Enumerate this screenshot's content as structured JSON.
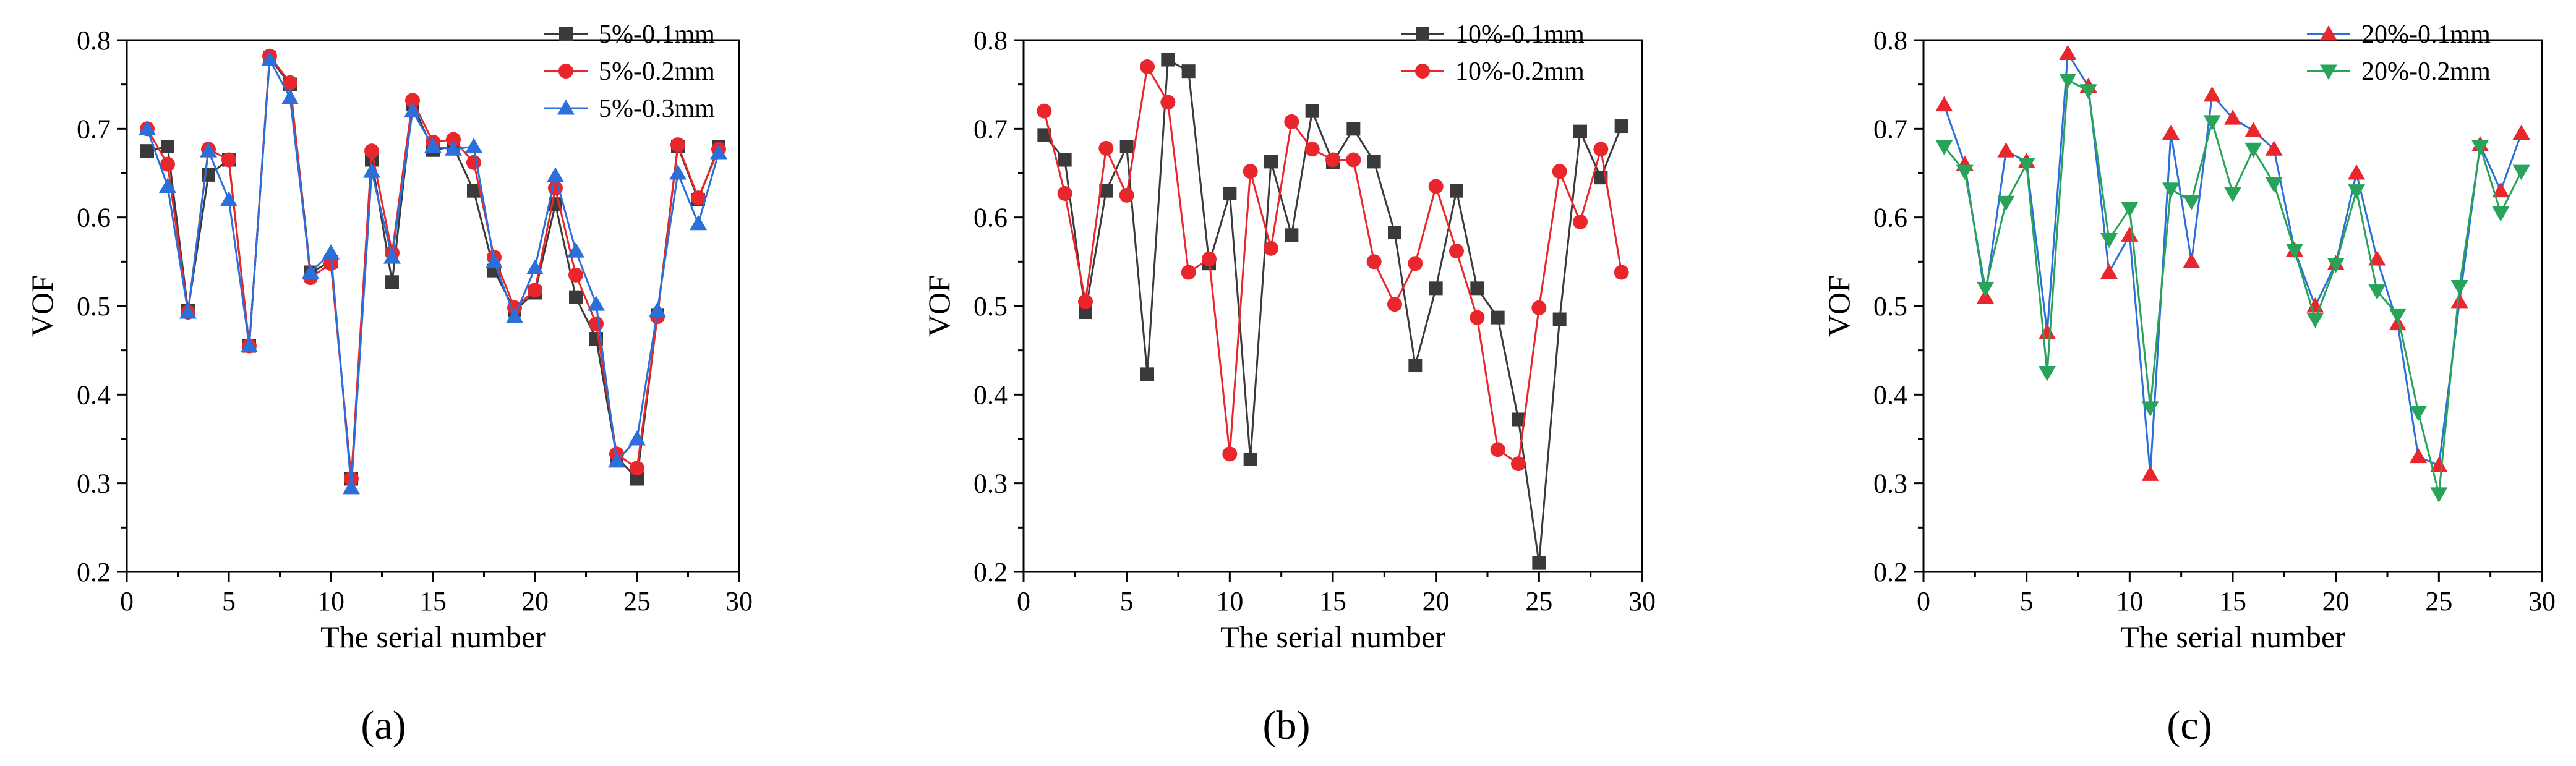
{
  "chart_data": [
    {
      "type": "line",
      "panel_label": "(a)",
      "xlabel": "The serial number",
      "ylabel": "VOF",
      "xlim": [
        0,
        30
      ],
      "ylim": [
        0.2,
        0.8
      ],
      "xticks": [
        "0",
        "5",
        "10",
        "15",
        "20",
        "25",
        "30"
      ],
      "yticks": [
        "0.2",
        "0.3",
        "0.4",
        "0.5",
        "0.6",
        "0.7",
        "0.8"
      ],
      "legend_position": "top-right",
      "series": [
        {
          "name": "5%-0.1mm",
          "color": "#3a3a3a",
          "marker": "square",
          "x": [
            1,
            2,
            3,
            4,
            5,
            6,
            7,
            8,
            9,
            10,
            11,
            12,
            13,
            14,
            15,
            16,
            17,
            18,
            19,
            20,
            21,
            22,
            23,
            24,
            25,
            26,
            27,
            28,
            29
          ],
          "values": [
            0.675,
            0.68,
            0.495,
            0.648,
            0.665,
            0.455,
            0.78,
            0.75,
            0.538,
            0.55,
            0.305,
            0.665,
            0.527,
            0.728,
            0.676,
            0.68,
            0.63,
            0.54,
            0.495,
            0.515,
            0.615,
            0.51,
            0.463,
            0.33,
            0.305,
            0.49,
            0.68,
            0.62,
            0.68
          ]
        },
        {
          "name": "5%-0.2mm",
          "color": "#e8262b",
          "marker": "circle",
          "x": [
            1,
            2,
            3,
            4,
            5,
            6,
            7,
            8,
            9,
            10,
            11,
            12,
            13,
            14,
            15,
            16,
            17,
            18,
            19,
            20,
            21,
            22,
            23,
            24,
            25,
            26,
            27,
            28,
            29
          ],
          "values": [
            0.7,
            0.66,
            0.493,
            0.677,
            0.665,
            0.455,
            0.782,
            0.752,
            0.532,
            0.548,
            0.305,
            0.675,
            0.56,
            0.732,
            0.685,
            0.688,
            0.662,
            0.555,
            0.498,
            0.518,
            0.633,
            0.535,
            0.48,
            0.333,
            0.317,
            0.488,
            0.682,
            0.622,
            0.677
          ]
        },
        {
          "name": "5%-0.3mm",
          "color": "#2b6fdb",
          "marker": "triangle-up",
          "x": [
            1,
            2,
            3,
            4,
            5,
            6,
            7,
            8,
            9,
            10,
            11,
            12,
            13,
            14,
            15,
            16,
            17,
            18,
            19,
            20,
            21,
            22,
            23,
            24,
            25,
            26,
            27,
            28,
            29
          ],
          "values": [
            0.7,
            0.635,
            0.493,
            0.675,
            0.62,
            0.455,
            0.778,
            0.735,
            0.538,
            0.56,
            0.295,
            0.652,
            0.555,
            0.72,
            0.68,
            0.677,
            0.68,
            0.55,
            0.488,
            0.543,
            0.647,
            0.562,
            0.502,
            0.325,
            0.35,
            0.495,
            0.65,
            0.593,
            0.673
          ]
        }
      ]
    },
    {
      "type": "line",
      "panel_label": "(b)",
      "xlabel": "The serial number",
      "ylabel": "VOF",
      "xlim": [
        0,
        30
      ],
      "ylim": [
        0.2,
        0.8
      ],
      "xticks": [
        "0",
        "5",
        "10",
        "15",
        "20",
        "25",
        "30"
      ],
      "yticks": [
        "0.2",
        "0.3",
        "0.4",
        "0.5",
        "0.6",
        "0.7",
        "0.8"
      ],
      "legend_position": "top-right",
      "series": [
        {
          "name": "10%-0.1mm",
          "color": "#3a3a3a",
          "marker": "square",
          "x": [
            1,
            2,
            3,
            4,
            5,
            6,
            7,
            8,
            9,
            10,
            11,
            12,
            13,
            14,
            15,
            16,
            17,
            18,
            19,
            20,
            21,
            22,
            23,
            24,
            25,
            26,
            27,
            28,
            29
          ],
          "values": [
            0.693,
            0.665,
            0.493,
            0.63,
            0.68,
            0.423,
            0.778,
            0.765,
            0.548,
            0.627,
            0.327,
            0.663,
            0.58,
            0.72,
            0.662,
            0.7,
            0.663,
            0.583,
            0.433,
            0.52,
            0.63,
            0.52,
            0.487,
            0.372,
            0.21,
            0.485,
            0.697,
            0.645,
            0.703
          ]
        },
        {
          "name": "10%-0.2mm",
          "color": "#e8262b",
          "marker": "circle",
          "x": [
            1,
            2,
            3,
            4,
            5,
            6,
            7,
            8,
            9,
            10,
            11,
            12,
            13,
            14,
            15,
            16,
            17,
            18,
            19,
            20,
            21,
            22,
            23,
            24,
            25,
            26,
            27,
            28,
            29
          ],
          "values": [
            0.72,
            0.627,
            0.505,
            0.678,
            0.625,
            0.77,
            0.73,
            0.538,
            0.553,
            0.333,
            0.652,
            0.565,
            0.708,
            0.677,
            0.665,
            0.665,
            0.55,
            0.502,
            0.548,
            0.635,
            0.562,
            0.487,
            0.338,
            0.322,
            0.498,
            0.652,
            0.595,
            0.677,
            0.538
          ]
        }
      ]
    },
    {
      "type": "line",
      "panel_label": "(c)",
      "xlabel": "The serial number",
      "ylabel": "VOF",
      "xlim": [
        0,
        30
      ],
      "ylim": [
        0.2,
        0.8
      ],
      "xticks": [
        "0",
        "5",
        "10",
        "15",
        "20",
        "25",
        "30"
      ],
      "yticks": [
        "0.2",
        "0.3",
        "0.4",
        "0.5",
        "0.6",
        "0.7",
        "0.8"
      ],
      "legend_position": "top-right",
      "series": [
        {
          "name": "20%-0.1mm",
          "color": "#2b6fdb",
          "marker": "triangle-up",
          "marker_color": "#e8262b",
          "x": [
            1,
            2,
            3,
            4,
            5,
            6,
            7,
            8,
            9,
            10,
            11,
            12,
            13,
            14,
            15,
            16,
            17,
            18,
            19,
            20,
            21,
            22,
            23,
            24,
            25,
            26,
            27,
            28,
            29
          ],
          "values": [
            0.727,
            0.66,
            0.51,
            0.675,
            0.663,
            0.47,
            0.785,
            0.748,
            0.538,
            0.58,
            0.31,
            0.695,
            0.55,
            0.738,
            0.712,
            0.698,
            0.677,
            0.563,
            0.5,
            0.548,
            0.65,
            0.553,
            0.48,
            0.33,
            0.32,
            0.505,
            0.682,
            0.63,
            0.695
          ]
        },
        {
          "name": "20%-0.2mm",
          "color": "#27a35a",
          "marker": "triangle-down",
          "marker_color": "#27a35a",
          "x": [
            1,
            2,
            3,
            4,
            5,
            6,
            7,
            8,
            9,
            10,
            11,
            12,
            13,
            14,
            15,
            16,
            17,
            18,
            19,
            20,
            21,
            22,
            23,
            24,
            25,
            26,
            27,
            28,
            29
          ],
          "values": [
            0.68,
            0.652,
            0.52,
            0.617,
            0.66,
            0.425,
            0.755,
            0.743,
            0.575,
            0.61,
            0.385,
            0.632,
            0.618,
            0.708,
            0.627,
            0.677,
            0.638,
            0.563,
            0.485,
            0.547,
            0.63,
            0.517,
            0.49,
            0.38,
            0.288,
            0.522,
            0.68,
            0.605,
            0.652
          ]
        }
      ]
    }
  ]
}
